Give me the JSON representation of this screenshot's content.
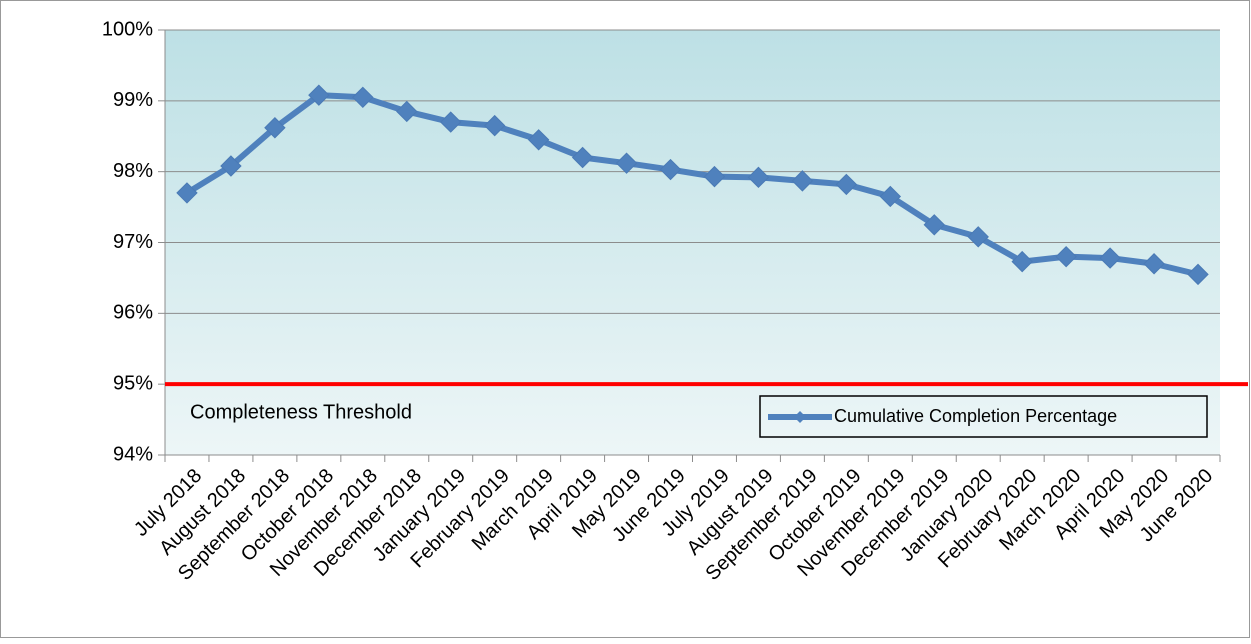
{
  "chart_data": {
    "type": "line",
    "categories": [
      "July 2018",
      "August 2018",
      "September 2018",
      "October 2018",
      "November 2018",
      "December 2018",
      "January 2019",
      "February 2019",
      "March 2019",
      "April 2019",
      "May 2019",
      "June 2019",
      "July 2019",
      "August 2019",
      "September 2019",
      "October 2019",
      "November 2019",
      "December 2019",
      "January 2020",
      "February 2020",
      "March 2020",
      "April 2020",
      "May 2020",
      "June 2020"
    ],
    "series": [
      {
        "name": "Cumulative Completion Percentage",
        "color": "#4f81bd",
        "values": [
          97.7,
          98.08,
          98.62,
          99.08,
          99.05,
          98.85,
          98.7,
          98.65,
          98.45,
          98.2,
          98.12,
          98.03,
          97.93,
          97.92,
          97.87,
          97.82,
          97.65,
          97.25,
          97.08,
          96.73,
          96.8,
          96.78,
          96.7,
          96.55
        ]
      }
    ],
    "ylim": [
      94,
      100
    ],
    "yticks": [
      {
        "value": 94,
        "label": "94%"
      },
      {
        "value": 95,
        "label": "95%"
      },
      {
        "value": 96,
        "label": "96%"
      },
      {
        "value": 97,
        "label": "97%"
      },
      {
        "value": 98,
        "label": "98%"
      },
      {
        "value": 99,
        "label": "99%"
      },
      {
        "value": 100,
        "label": "100%"
      }
    ],
    "grid": true,
    "threshold": {
      "value": 95,
      "label": "Completeness Threshold",
      "color": "#ff0000"
    },
    "legend": "lower right"
  }
}
